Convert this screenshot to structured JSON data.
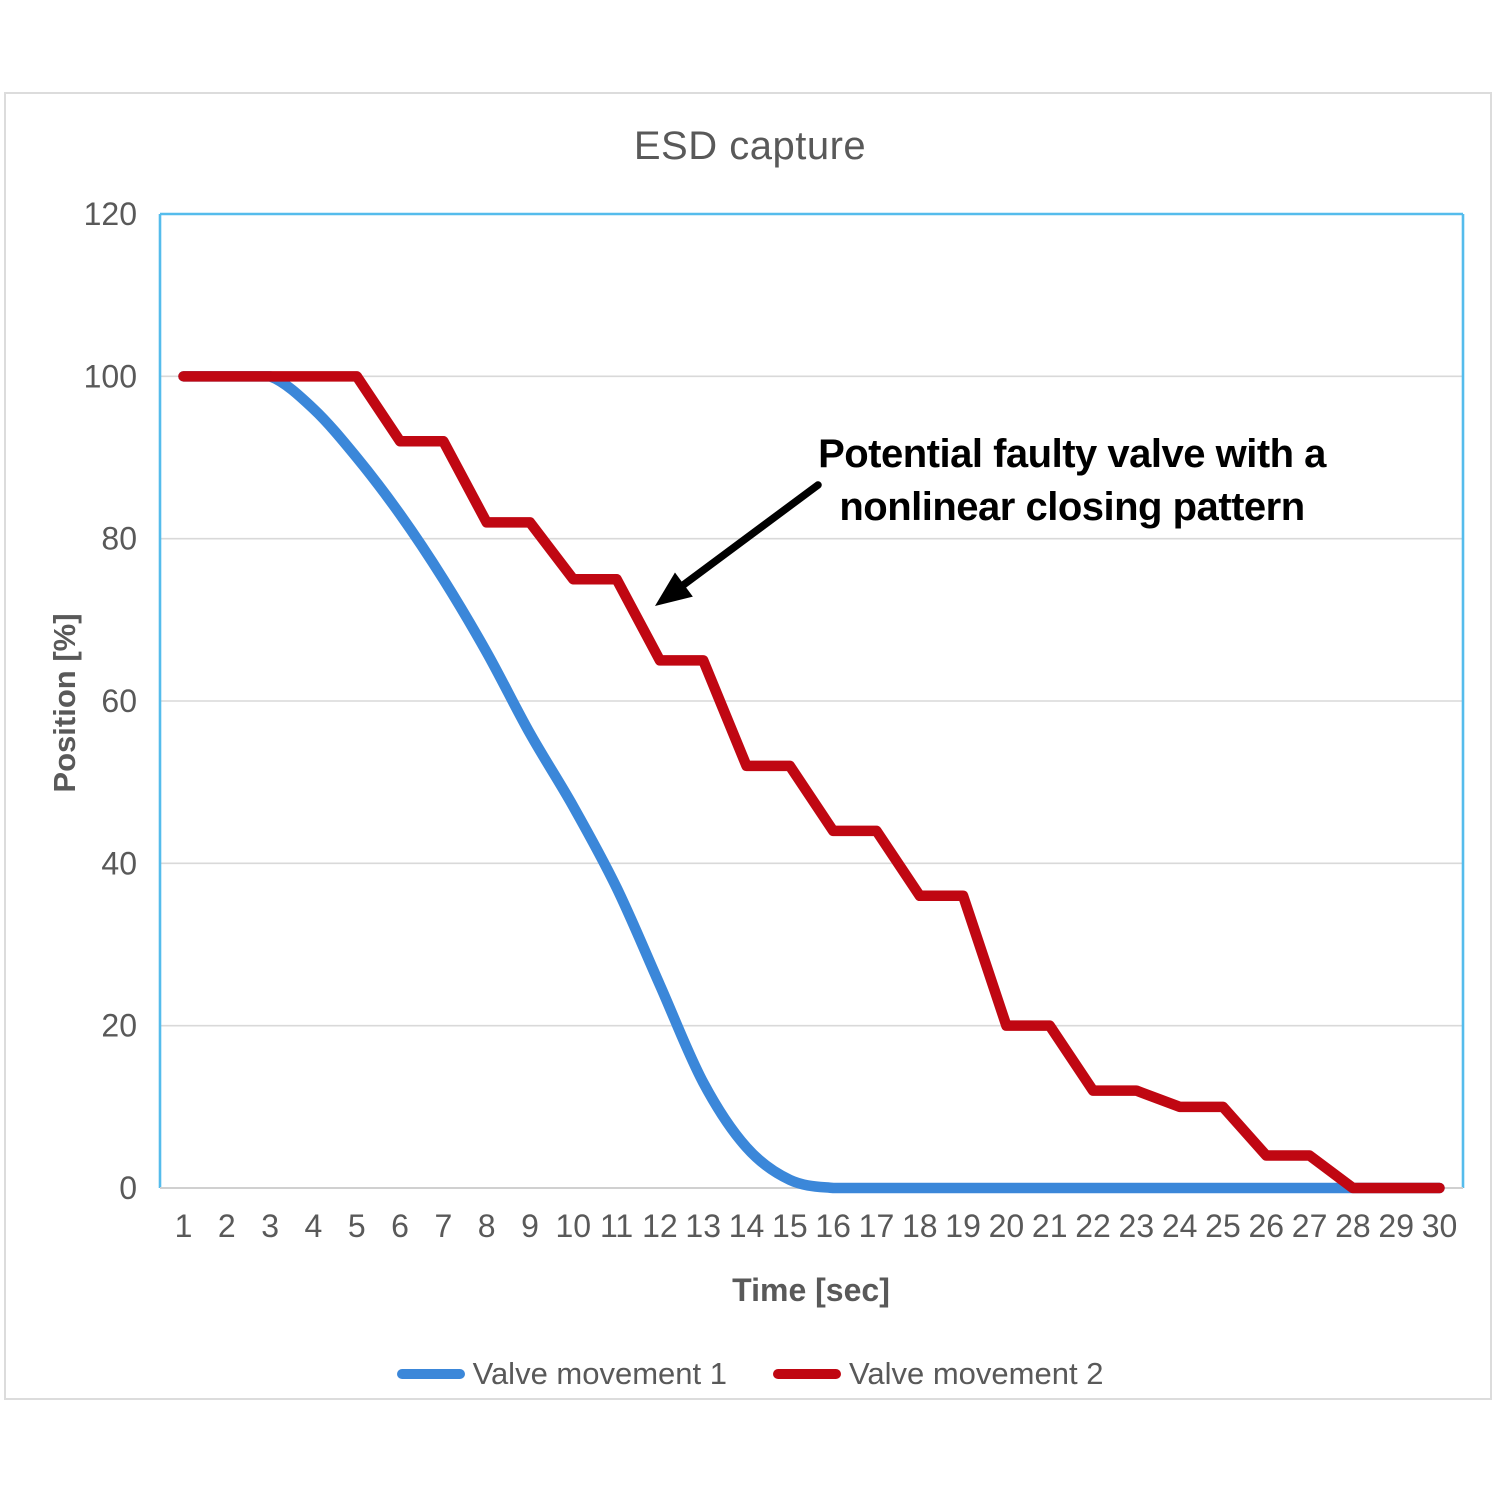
{
  "title": "ESD capture",
  "annotation": {
    "line1": "Potential faulty valve with a",
    "line2": "nonlinear closing pattern"
  },
  "colors": {
    "plot_border": "#55bcec",
    "grid": "#d9d9d9",
    "axis_line": "#d0d0d0",
    "text": "#595959",
    "annotation_arrow": "#000000",
    "series1": "#3b87d9",
    "series2": "#c00712"
  },
  "chart_data": {
    "type": "line",
    "title": "ESD capture",
    "xlabel": "Time [sec]",
    "ylabel": "Position [%]",
    "x": [
      1,
      2,
      3,
      4,
      5,
      6,
      7,
      8,
      9,
      10,
      11,
      12,
      13,
      14,
      15,
      16,
      17,
      18,
      19,
      20,
      21,
      22,
      23,
      24,
      25,
      26,
      27,
      28,
      29,
      30
    ],
    "ylim": [
      0,
      120
    ],
    "yticks": [
      0,
      20,
      40,
      60,
      80,
      100,
      120
    ],
    "grid": true,
    "legend_position": "bottom",
    "series": [
      {
        "name": "Valve movement 1",
        "color": "#3b87d9",
        "smooth": true,
        "values": [
          100,
          100,
          100,
          96,
          90,
          83,
          75,
          66,
          56,
          47,
          37,
          25,
          13,
          5,
          1,
          0,
          0,
          0,
          0,
          0,
          0,
          0,
          0,
          0,
          0,
          0,
          0,
          0,
          0,
          0
        ]
      },
      {
        "name": "Valve movement 2",
        "color": "#c00712",
        "smooth": false,
        "values": [
          100,
          100,
          100,
          100,
          100,
          92,
          92,
          82,
          82,
          75,
          75,
          65,
          65,
          52,
          52,
          44,
          44,
          36,
          36,
          20,
          20,
          12,
          12,
          10,
          10,
          4,
          4,
          0,
          0,
          0
        ]
      }
    ],
    "annotation_text": "Potential faulty valve with a nonlinear closing pattern"
  }
}
